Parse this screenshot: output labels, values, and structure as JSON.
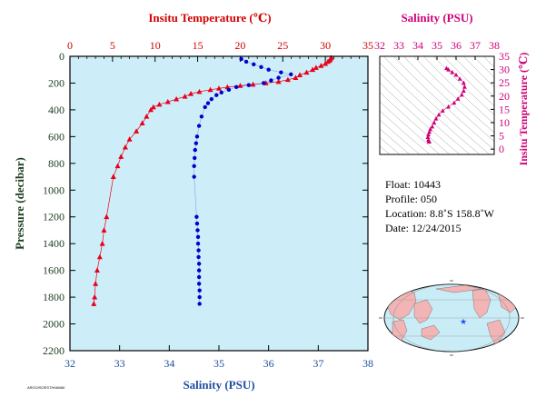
{
  "chart_data": [
    {
      "type": "line",
      "ylabel": "Pressure (decibar)",
      "y_ticks": [
        0,
        200,
        400,
        600,
        800,
        1000,
        1200,
        1400,
        1600,
        1800,
        2000,
        2200
      ],
      "ylim": [
        0,
        2200
      ],
      "y_inverted": true,
      "top_axis": {
        "label": "Insitu Temperature (℃)",
        "ticks": [
          0,
          5,
          10,
          15,
          20,
          25,
          30,
          35
        ],
        "range": [
          0,
          35
        ],
        "color": "#d40000"
      },
      "bottom_axis": {
        "label": "Salinity (PSU)",
        "ticks": [
          32,
          33,
          34,
          35,
          36,
          37,
          38
        ],
        "range": [
          32,
          38
        ],
        "color": "#1e50a0"
      },
      "background": "#cdeef8",
      "series": [
        {
          "marker": "triangle",
          "color": "#e8001c",
          "axis": "top",
          "points": [
            [
              30.7,
              10
            ],
            [
              30.6,
              20
            ],
            [
              30.5,
              30
            ],
            [
              30.3,
              40
            ],
            [
              30.0,
              55
            ],
            [
              29.5,
              70
            ],
            [
              28.9,
              85
            ],
            [
              28.5,
              100
            ],
            [
              27.8,
              120
            ],
            [
              27.0,
              140
            ],
            [
              26.5,
              160
            ],
            [
              25.6,
              175
            ],
            [
              24.5,
              190
            ],
            [
              23.0,
              200
            ],
            [
              21.5,
              210
            ],
            [
              20.0,
              220
            ],
            [
              18.5,
              230
            ],
            [
              17.5,
              240
            ],
            [
              16.5,
              250
            ],
            [
              15.2,
              265
            ],
            [
              14.2,
              280
            ],
            [
              13.5,
              300
            ],
            [
              12.5,
              320
            ],
            [
              11.5,
              340
            ],
            [
              10.5,
              360
            ],
            [
              9.8,
              380
            ],
            [
              9.5,
              400
            ],
            [
              9.0,
              450
            ],
            [
              8.5,
              500
            ],
            [
              7.8,
              560
            ],
            [
              7.0,
              620
            ],
            [
              6.5,
              680
            ],
            [
              6.0,
              750
            ],
            [
              5.6,
              820
            ],
            [
              5.1,
              900
            ],
            [
              4.3,
              1200
            ],
            [
              4.0,
              1300
            ],
            [
              3.8,
              1400
            ],
            [
              3.5,
              1500
            ],
            [
              3.2,
              1600
            ],
            [
              3.0,
              1700
            ],
            [
              2.9,
              1800
            ],
            [
              2.8,
              1850
            ]
          ]
        },
        {
          "marker": "dot",
          "color": "#0000cc",
          "axis": "bottom",
          "points": [
            [
              35.45,
              20
            ],
            [
              35.55,
              40
            ],
            [
              35.7,
              60
            ],
            [
              35.85,
              80
            ],
            [
              36.0,
              100
            ],
            [
              36.25,
              120
            ],
            [
              36.45,
              135
            ],
            [
              36.2,
              160
            ],
            [
              36.05,
              180
            ],
            [
              35.9,
              200
            ],
            [
              35.6,
              215
            ],
            [
              35.35,
              230
            ],
            [
              35.2,
              250
            ],
            [
              35.05,
              270
            ],
            [
              34.95,
              290
            ],
            [
              34.85,
              320
            ],
            [
              34.78,
              350
            ],
            [
              34.72,
              380
            ],
            [
              34.65,
              450
            ],
            [
              34.6,
              520
            ],
            [
              34.56,
              600
            ],
            [
              34.54,
              650
            ],
            [
              34.52,
              700
            ],
            [
              34.51,
              760
            ],
            [
              34.5,
              820
            ],
            [
              34.5,
              900
            ],
            [
              34.55,
              1200
            ],
            [
              34.56,
              1250
            ],
            [
              34.57,
              1300
            ],
            [
              34.58,
              1350
            ],
            [
              34.58,
              1400
            ],
            [
              34.59,
              1450
            ],
            [
              34.59,
              1500
            ],
            [
              34.6,
              1550
            ],
            [
              34.6,
              1600
            ],
            [
              34.6,
              1650
            ],
            [
              34.6,
              1700
            ],
            [
              34.61,
              1750
            ],
            [
              34.61,
              1800
            ],
            [
              34.61,
              1850
            ]
          ]
        }
      ]
    },
    {
      "type": "scatter",
      "title": "Salinity (PSU)",
      "ylabel": "Insitu Temperature (℃)",
      "x_ticks": [
        32,
        33,
        34,
        35,
        36,
        37,
        38
      ],
      "xlim": [
        32,
        38
      ],
      "y_ticks": [
        0,
        5,
        10,
        15,
        20,
        25,
        30,
        35
      ],
      "ylim": [
        -2,
        35
      ],
      "color": "#d0007a",
      "points": [
        [
          35.5,
          30.5
        ],
        [
          35.6,
          30.0
        ],
        [
          35.8,
          29.0
        ],
        [
          36.0,
          28.0
        ],
        [
          36.2,
          26.5
        ],
        [
          36.4,
          25.0
        ],
        [
          36.45,
          23.5
        ],
        [
          36.4,
          22.0
        ],
        [
          36.3,
          20.5
        ],
        [
          36.1,
          19.0
        ],
        [
          35.9,
          17.5
        ],
        [
          35.6,
          16.0
        ],
        [
          35.3,
          14.5
        ],
        [
          35.1,
          13.0
        ],
        [
          34.95,
          11.5
        ],
        [
          34.85,
          10.0
        ],
        [
          34.75,
          8.5
        ],
        [
          34.65,
          7.5
        ],
        [
          34.6,
          6.5
        ],
        [
          34.55,
          5.5
        ],
        [
          34.52,
          4.5
        ],
        [
          34.55,
          3.5
        ],
        [
          34.58,
          3.0
        ],
        [
          34.6,
          2.8
        ]
      ]
    }
  ],
  "float_info": {
    "float": "Float:  10443",
    "profile": "Profile:  050",
    "location": "Location:  8.8˚S  158.8˚W",
    "date": "Date:  12/24/2015"
  },
  "map": {
    "marker": "★",
    "marker_color": "#1f4fff",
    "ocean_color": "#c9ecf6",
    "land_color": "#f2b4b4"
  },
  "footer_text": "ARGO/SOEST/HAWAII"
}
